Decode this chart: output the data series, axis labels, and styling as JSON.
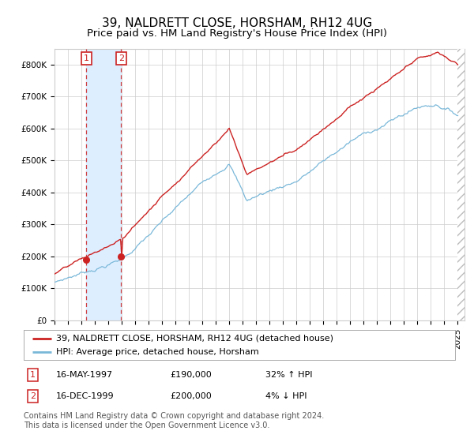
{
  "title": "39, NALDRETT CLOSE, HORSHAM, RH12 4UG",
  "subtitle": "Price paid vs. HM Land Registry's House Price Index (HPI)",
  "ylim": [
    0,
    850000
  ],
  "yticks": [
    0,
    100000,
    200000,
    300000,
    400000,
    500000,
    600000,
    700000,
    800000
  ],
  "ytick_labels": [
    "£0",
    "£100K",
    "£200K",
    "£300K",
    "£400K",
    "£500K",
    "£600K",
    "£700K",
    "£800K"
  ],
  "purchase1_year": 1997.37,
  "purchase1_price": 190000,
  "purchase1_label": "1",
  "purchase2_year": 1999.96,
  "purchase2_price": 200000,
  "purchase2_label": "2",
  "hpi_color": "#7ab8d9",
  "price_color": "#cc2222",
  "dot_color": "#cc2222",
  "shading_color": "#ddeeff",
  "grid_color": "#cccccc",
  "background_color": "#ffffff",
  "legend_label_price": "39, NALDRETT CLOSE, HORSHAM, RH12 4UG (detached house)",
  "legend_label_hpi": "HPI: Average price, detached house, Horsham",
  "table_row1_num": "1",
  "table_row1_date": "16-MAY-1997",
  "table_row1_price": "£190,000",
  "table_row1_hpi": "32% ↑ HPI",
  "table_row2_num": "2",
  "table_row2_date": "16-DEC-1999",
  "table_row2_price": "£200,000",
  "table_row2_hpi": "4% ↓ HPI",
  "footnote": "Contains HM Land Registry data © Crown copyright and database right 2024.\nThis data is licensed under the Open Government Licence v3.0.",
  "title_fontsize": 11,
  "subtitle_fontsize": 9.5,
  "tick_fontsize": 7.5,
  "legend_fontsize": 8,
  "footnote_fontsize": 7
}
